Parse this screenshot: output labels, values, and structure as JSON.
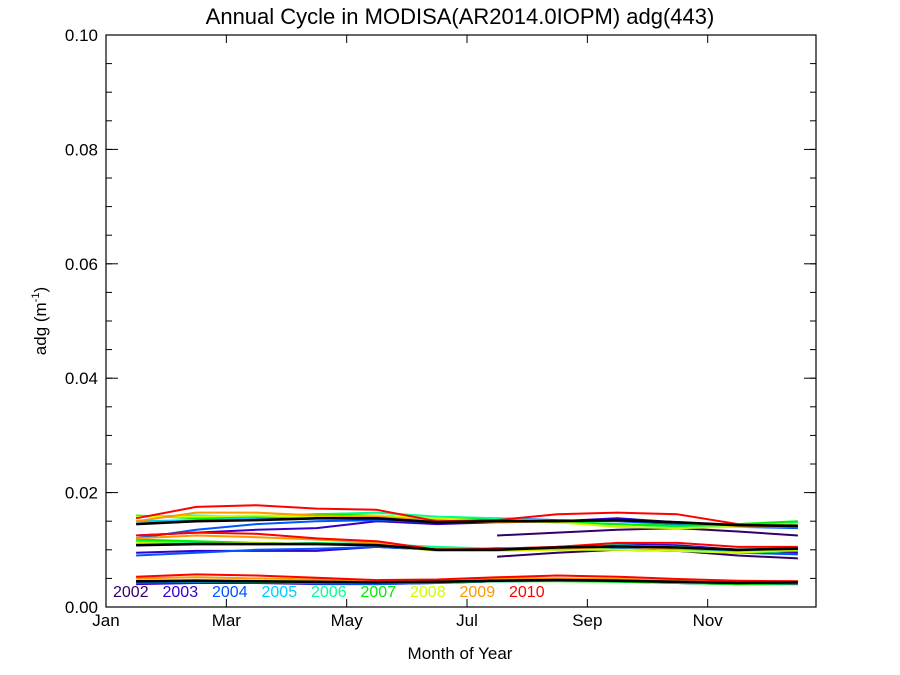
{
  "chart_data": {
    "type": "line",
    "title": "Annual Cycle in MODISA(AR2014.0IOPM) adg(443)",
    "xlabel": "Month of Year",
    "ylabel": "adg (m",
    "ylabel_sup": "-1",
    "ylabel_close": ")",
    "x_tick_labels": [
      "Jan",
      "Mar",
      "May",
      "Jul",
      "Sep",
      "Nov"
    ],
    "x_tick_months": [
      1,
      3,
      5,
      7,
      9,
      11
    ],
    "xlim": [
      1,
      12.8
    ],
    "y_tick_labels": [
      "0.00",
      "0.02",
      "0.04",
      "0.06",
      "0.08",
      "0.10"
    ],
    "y_tick_values": [
      0.0,
      0.02,
      0.04,
      0.06,
      0.08,
      0.1
    ],
    "ylim": [
      0.0,
      0.1
    ],
    "grid": false,
    "legend_placement": "bottom-left",
    "x_months": [
      1.5,
      2.5,
      3.5,
      4.5,
      5.5,
      6.5,
      7.5,
      8.5,
      9.5,
      10.5,
      11.5,
      12.5
    ],
    "series": [
      {
        "name": "2002",
        "color": "#330066",
        "groups": [
          [
            null,
            null,
            null,
            null,
            null,
            null,
            0.0125,
            0.013,
            0.0135,
            0.0138,
            0.0132,
            0.0125
          ],
          [
            null,
            null,
            null,
            null,
            null,
            null,
            0.0088,
            0.0095,
            0.01,
            0.0098,
            0.009,
            0.0085
          ],
          [
            null,
            null,
            null,
            null,
            null,
            null,
            0.0045,
            0.0048,
            0.0047,
            0.0044,
            0.0042,
            0.0043
          ]
        ]
      },
      {
        "name": "2003",
        "color": "#3300cc",
        "groups": [
          [
            0.0125,
            0.013,
            0.0135,
            0.0138,
            0.015,
            0.0145,
            0.0148,
            0.015,
            0.0155,
            0.0148,
            0.014,
            0.0142
          ],
          [
            0.0095,
            0.0098,
            0.0098,
            0.0098,
            0.0105,
            0.01,
            0.01,
            0.0105,
            0.011,
            0.0108,
            0.01,
            0.0095
          ],
          [
            0.004,
            0.0042,
            0.0042,
            0.004,
            0.004,
            0.0042,
            0.0045,
            0.0046,
            0.0045,
            0.0042,
            0.004,
            0.004
          ]
        ]
      },
      {
        "name": "2004",
        "color": "#0055ff",
        "groups": [
          [
            0.012,
            0.0135,
            0.0145,
            0.015,
            0.0152,
            0.0148,
            0.0155,
            0.0152,
            0.015,
            0.0145,
            0.014,
            0.0138
          ],
          [
            0.009,
            0.0095,
            0.01,
            0.0102,
            0.0105,
            0.01,
            0.0103,
            0.01,
            0.0102,
            0.0098,
            0.0095,
            0.0092
          ],
          [
            0.0042,
            0.0044,
            0.0043,
            0.0041,
            0.004,
            0.0042,
            0.0045,
            0.0046,
            0.0044,
            0.0042,
            0.004,
            0.0041
          ]
        ]
      },
      {
        "name": "2005",
        "color": "#00ccff",
        "groups": [
          [
            0.015,
            0.0152,
            0.0155,
            0.016,
            0.0158,
            0.0152,
            0.015,
            0.0148,
            0.0145,
            0.0142,
            0.014,
            0.0142
          ],
          [
            0.011,
            0.011,
            0.0112,
            0.011,
            0.0108,
            0.0102,
            0.01,
            0.0102,
            0.0105,
            0.0102,
            0.0098,
            0.01
          ],
          [
            0.0044,
            0.0045,
            0.0044,
            0.0043,
            0.0042,
            0.0043,
            0.0045,
            0.0046,
            0.0045,
            0.0043,
            0.0042,
            0.0042
          ]
        ]
      },
      {
        "name": "2006",
        "color": "#00ff99",
        "groups": [
          [
            0.0158,
            0.016,
            0.0158,
            0.0162,
            0.0165,
            0.0158,
            0.0155,
            0.015,
            0.0145,
            0.014,
            0.0145,
            0.0148
          ],
          [
            0.0115,
            0.0112,
            0.011,
            0.0112,
            0.011,
            0.0105,
            0.0102,
            0.0105,
            0.0108,
            0.0105,
            0.01,
            0.0102
          ],
          [
            0.0046,
            0.0046,
            0.0045,
            0.0044,
            0.0043,
            0.0044,
            0.0046,
            0.0047,
            0.0046,
            0.0044,
            0.0042,
            0.0042
          ]
        ]
      },
      {
        "name": "2007",
        "color": "#00ee00",
        "groups": [
          [
            0.016,
            0.0155,
            0.0158,
            0.0162,
            0.016,
            0.0155,
            0.0152,
            0.0148,
            0.0145,
            0.0142,
            0.0145,
            0.015
          ],
          [
            0.0118,
            0.0115,
            0.0112,
            0.011,
            0.0108,
            0.01,
            0.01,
            0.0102,
            0.01,
            0.0098,
            0.0095,
            0.0098
          ],
          [
            0.0045,
            0.0045,
            0.0044,
            0.0043,
            0.0042,
            0.0043,
            0.0045,
            0.0045,
            0.0044,
            0.0042,
            0.004,
            0.0041
          ]
        ]
      },
      {
        "name": "2008",
        "color": "#ccff00",
        "groups": [
          [
            0.0158,
            0.0158,
            0.016,
            0.0158,
            0.016,
            0.0155,
            0.015,
            0.0148,
            0.014,
            0.0138,
            0.014,
            0.0145
          ],
          [
            0.0112,
            0.011,
            0.0112,
            0.011,
            0.0108,
            0.0098,
            0.0098,
            0.01,
            0.01,
            0.0098,
            0.0095,
            0.01
          ],
          [
            0.0046,
            0.0047,
            0.0046,
            0.0045,
            0.0044,
            0.0045,
            0.0046,
            0.0047,
            0.0046,
            0.0044,
            0.0042,
            0.0043
          ]
        ]
      },
      {
        "name": "2009",
        "color": "#ff9900",
        "groups": [
          [
            0.015,
            0.0165,
            0.0165,
            0.016,
            0.0158,
            0.015,
            0.0148,
            0.015,
            0.0152,
            0.0148,
            0.0142,
            0.014
          ],
          [
            0.012,
            0.0125,
            0.0122,
            0.0118,
            0.0112,
            0.0102,
            0.01,
            0.0102,
            0.0105,
            0.0102,
            0.01,
            0.0102
          ],
          [
            0.005,
            0.0052,
            0.005,
            0.0048,
            0.0046,
            0.0047,
            0.005,
            0.005,
            0.0049,
            0.0046,
            0.0044,
            0.0045
          ]
        ]
      },
      {
        "name": "2010",
        "color": "#ff0000",
        "groups": [
          [
            0.0155,
            0.0175,
            0.0178,
            0.0172,
            0.017,
            0.015,
            0.0152,
            0.0162,
            0.0165,
            0.0162,
            0.0145,
            0.014
          ],
          [
            0.0125,
            0.013,
            0.0128,
            0.012,
            0.0115,
            0.01,
            0.0102,
            0.0105,
            0.0112,
            0.0112,
            0.0105,
            0.0105
          ],
          [
            0.0053,
            0.0057,
            0.0055,
            0.0051,
            0.0047,
            0.0048,
            0.0052,
            0.0055,
            0.0053,
            0.0049,
            0.0046,
            0.0045
          ]
        ]
      }
    ],
    "climatology": {
      "color": "#000000",
      "groups": [
        [
          0.0145,
          0.015,
          0.0152,
          0.0155,
          0.0155,
          0.0148,
          0.015,
          0.015,
          0.0152,
          0.0148,
          0.0143,
          0.0142
        ],
        [
          0.0108,
          0.011,
          0.011,
          0.011,
          0.0108,
          0.01,
          0.01,
          0.0104,
          0.0106,
          0.0104,
          0.01,
          0.0102
        ],
        [
          0.0045,
          0.0046,
          0.0045,
          0.0044,
          0.0043,
          0.0044,
          0.0046,
          0.0047,
          0.0046,
          0.0044,
          0.0042,
          0.0043
        ]
      ]
    }
  }
}
